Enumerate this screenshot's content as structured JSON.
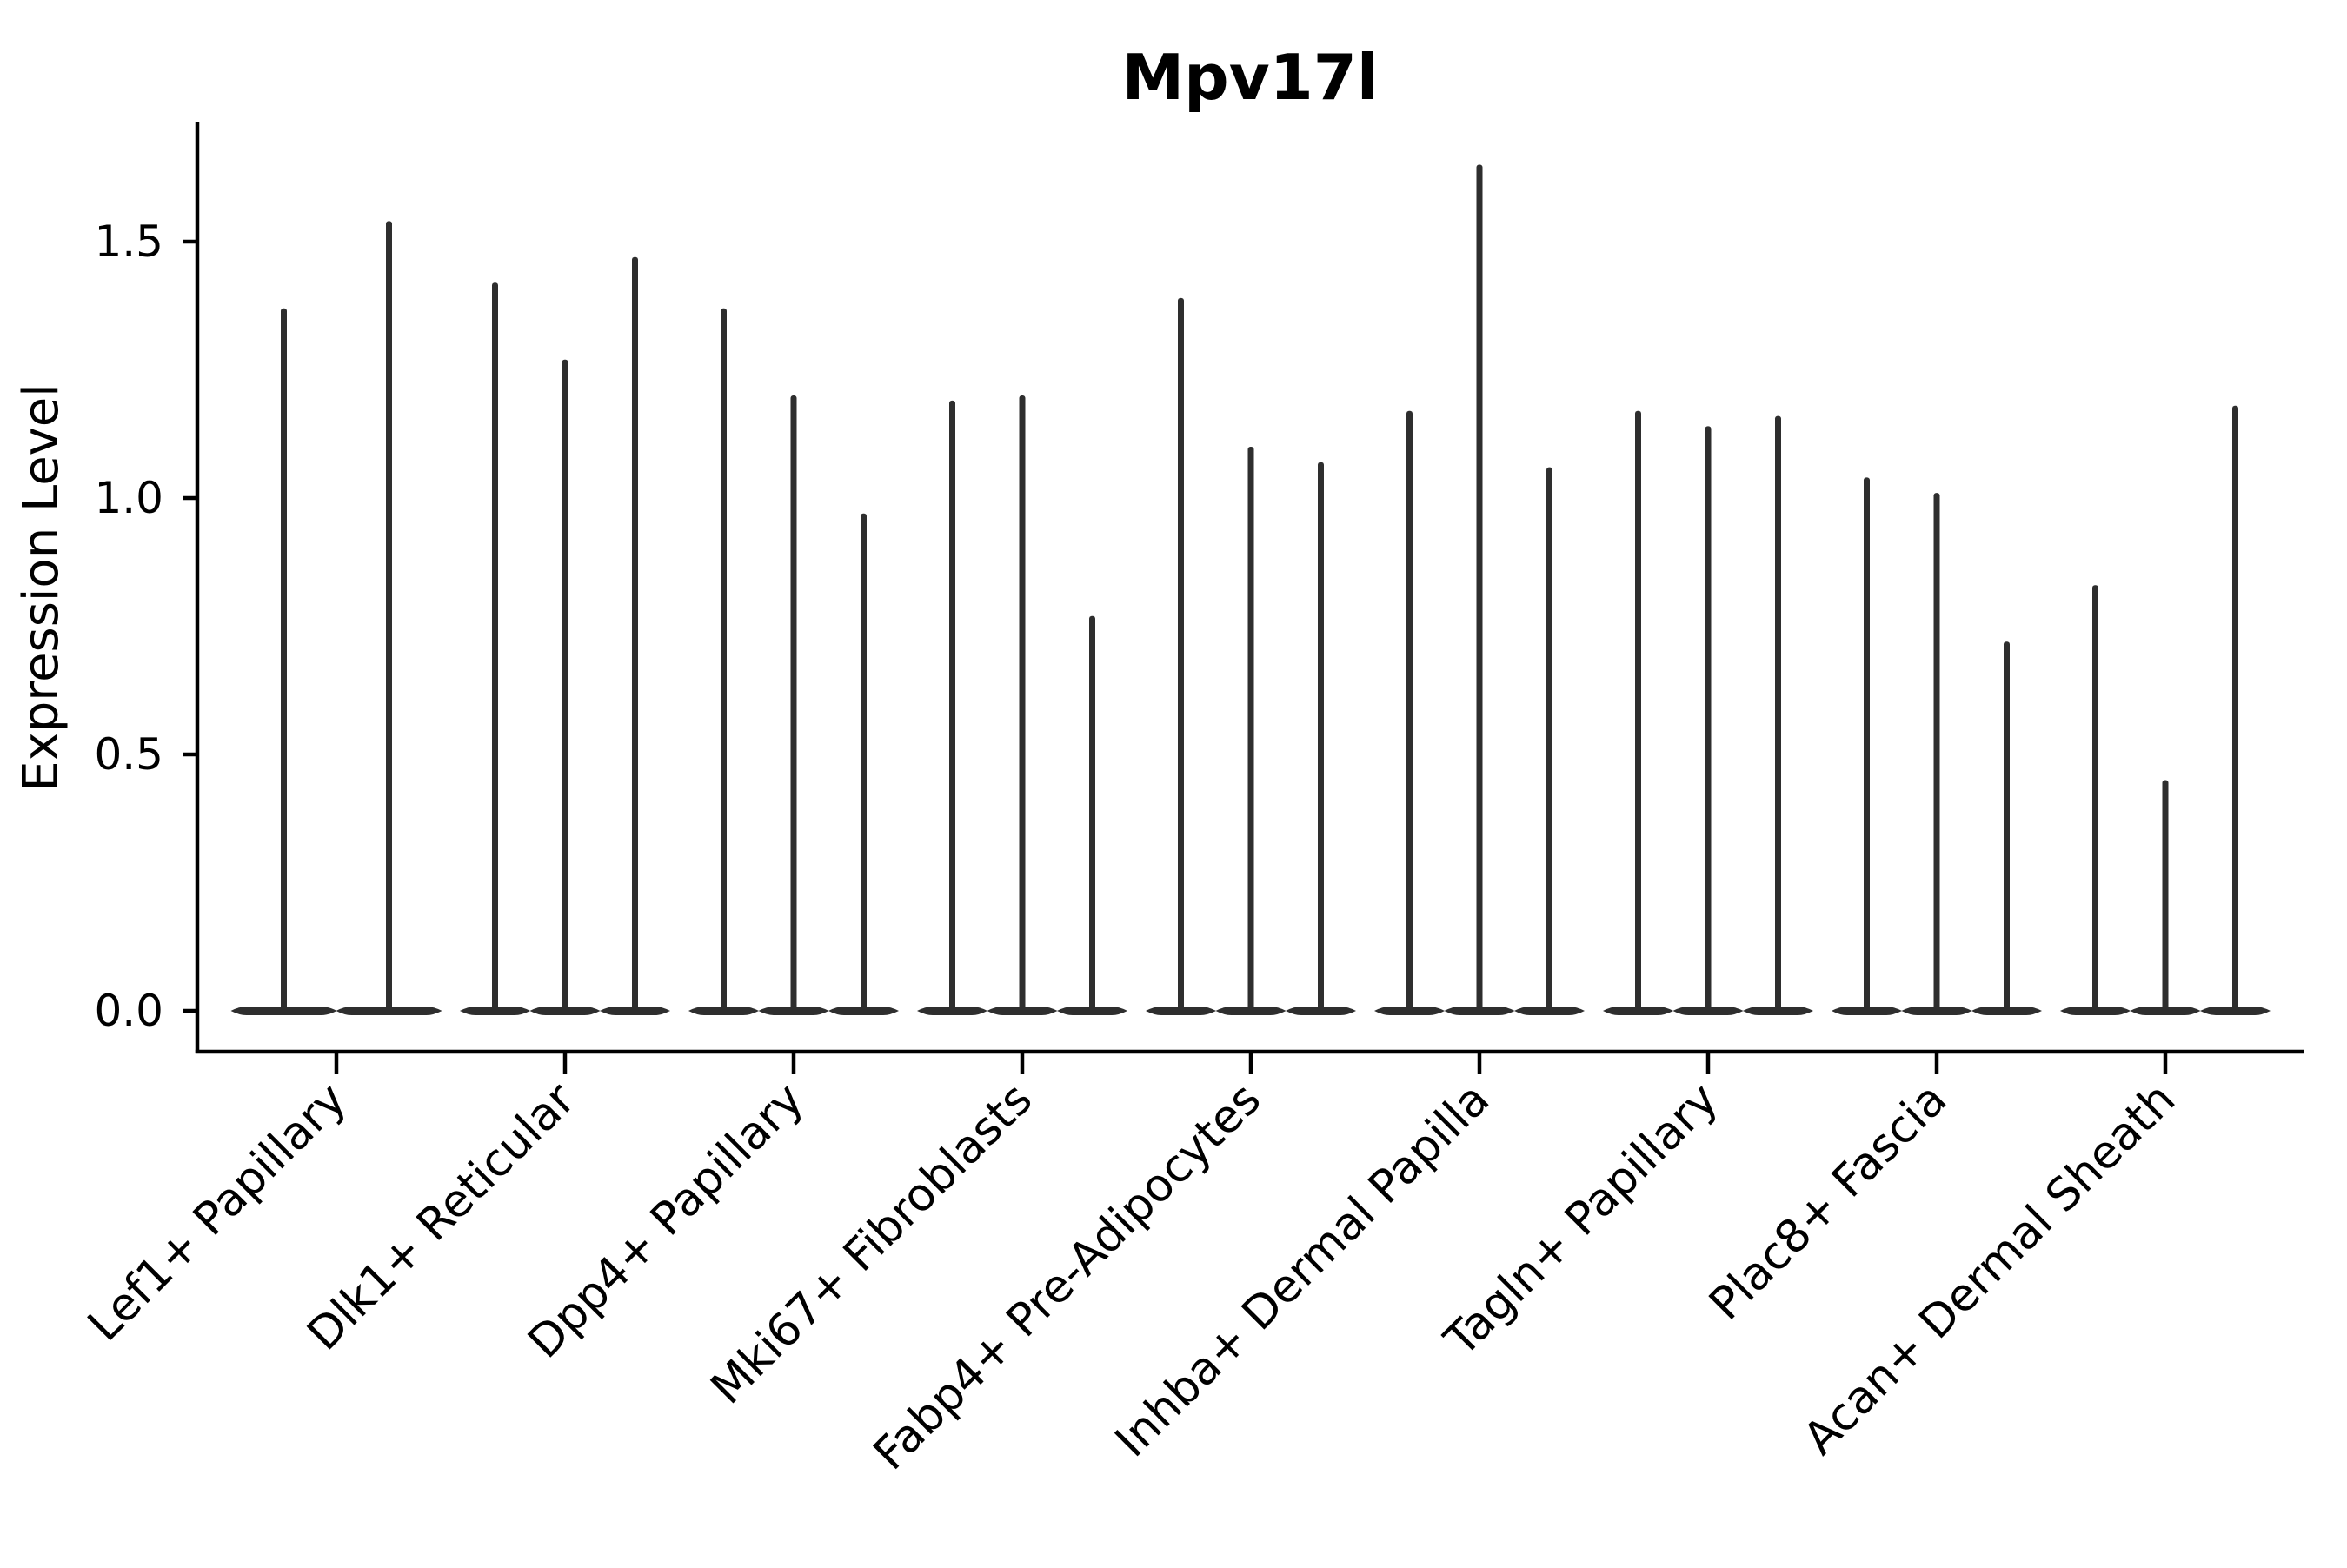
{
  "title": "Mpv17l",
  "y_axis": {
    "label": "Expression Level",
    "ticks": [
      "0.0",
      "0.5",
      "1.0",
      "1.5"
    ],
    "tick_values": [
      0.0,
      0.5,
      1.0,
      1.5
    ]
  },
  "colors": {
    "violin_fill": "#2e2e2e",
    "axis": "#000000",
    "text": "#000000",
    "background": "#ffffff"
  },
  "chart_data": {
    "type": "violin",
    "title": "Mpv17l",
    "xlabel": "",
    "ylabel": "Expression Level",
    "ylim": [
      -0.08,
      1.73
    ],
    "yticks": [
      0.0,
      0.5,
      1.0,
      1.5
    ],
    "grid": false,
    "legend": false,
    "x_tick_rotation": 45,
    "description": "Thin violin plots of Mpv17l expression per fibroblast cell type; each category holds dodged violins that are wide at expression 0 and spike to their maximum expression value.",
    "categories": [
      "Lef1+ Papillary",
      "Dlk1+ Reticular",
      "Dpp4+ Papillary",
      "Mki67+ Fibroblasts",
      "Fabp4+ Pre-Adipocytes",
      "Inhba+ Dermal Papilla",
      "Tagln+ Papillary",
      "Plac8+ Fascia",
      "Acan+ Dermal Sheath"
    ],
    "series": [
      {
        "category": "Lef1+ Papillary",
        "baseline": 0.0,
        "violin_maxima": [
          1.37,
          1.54
        ]
      },
      {
        "category": "Dlk1+ Reticular",
        "baseline": 0.0,
        "violin_maxima": [
          1.42,
          1.27,
          1.47
        ]
      },
      {
        "category": "Dpp4+ Papillary",
        "baseline": 0.0,
        "violin_maxima": [
          1.37,
          1.2,
          0.97
        ]
      },
      {
        "category": "Mki67+ Fibroblasts",
        "baseline": 0.0,
        "violin_maxima": [
          1.19,
          1.2,
          0.77
        ]
      },
      {
        "category": "Fabp4+ Pre-Adipocytes",
        "baseline": 0.0,
        "violin_maxima": [
          1.39,
          1.1,
          1.07
        ]
      },
      {
        "category": "Inhba+ Dermal Papilla",
        "baseline": 0.0,
        "violin_maxima": [
          1.17,
          1.65,
          1.06
        ]
      },
      {
        "category": "Tagln+ Papillary",
        "baseline": 0.0,
        "violin_maxima": [
          1.17,
          1.14,
          1.16
        ]
      },
      {
        "category": "Plac8+ Fascia",
        "baseline": 0.0,
        "violin_maxima": [
          1.04,
          1.01,
          0.72
        ]
      },
      {
        "category": "Acan+ Dermal Sheath",
        "baseline": 0.0,
        "violin_maxima": [
          0.83,
          0.45,
          1.18
        ]
      }
    ]
  }
}
